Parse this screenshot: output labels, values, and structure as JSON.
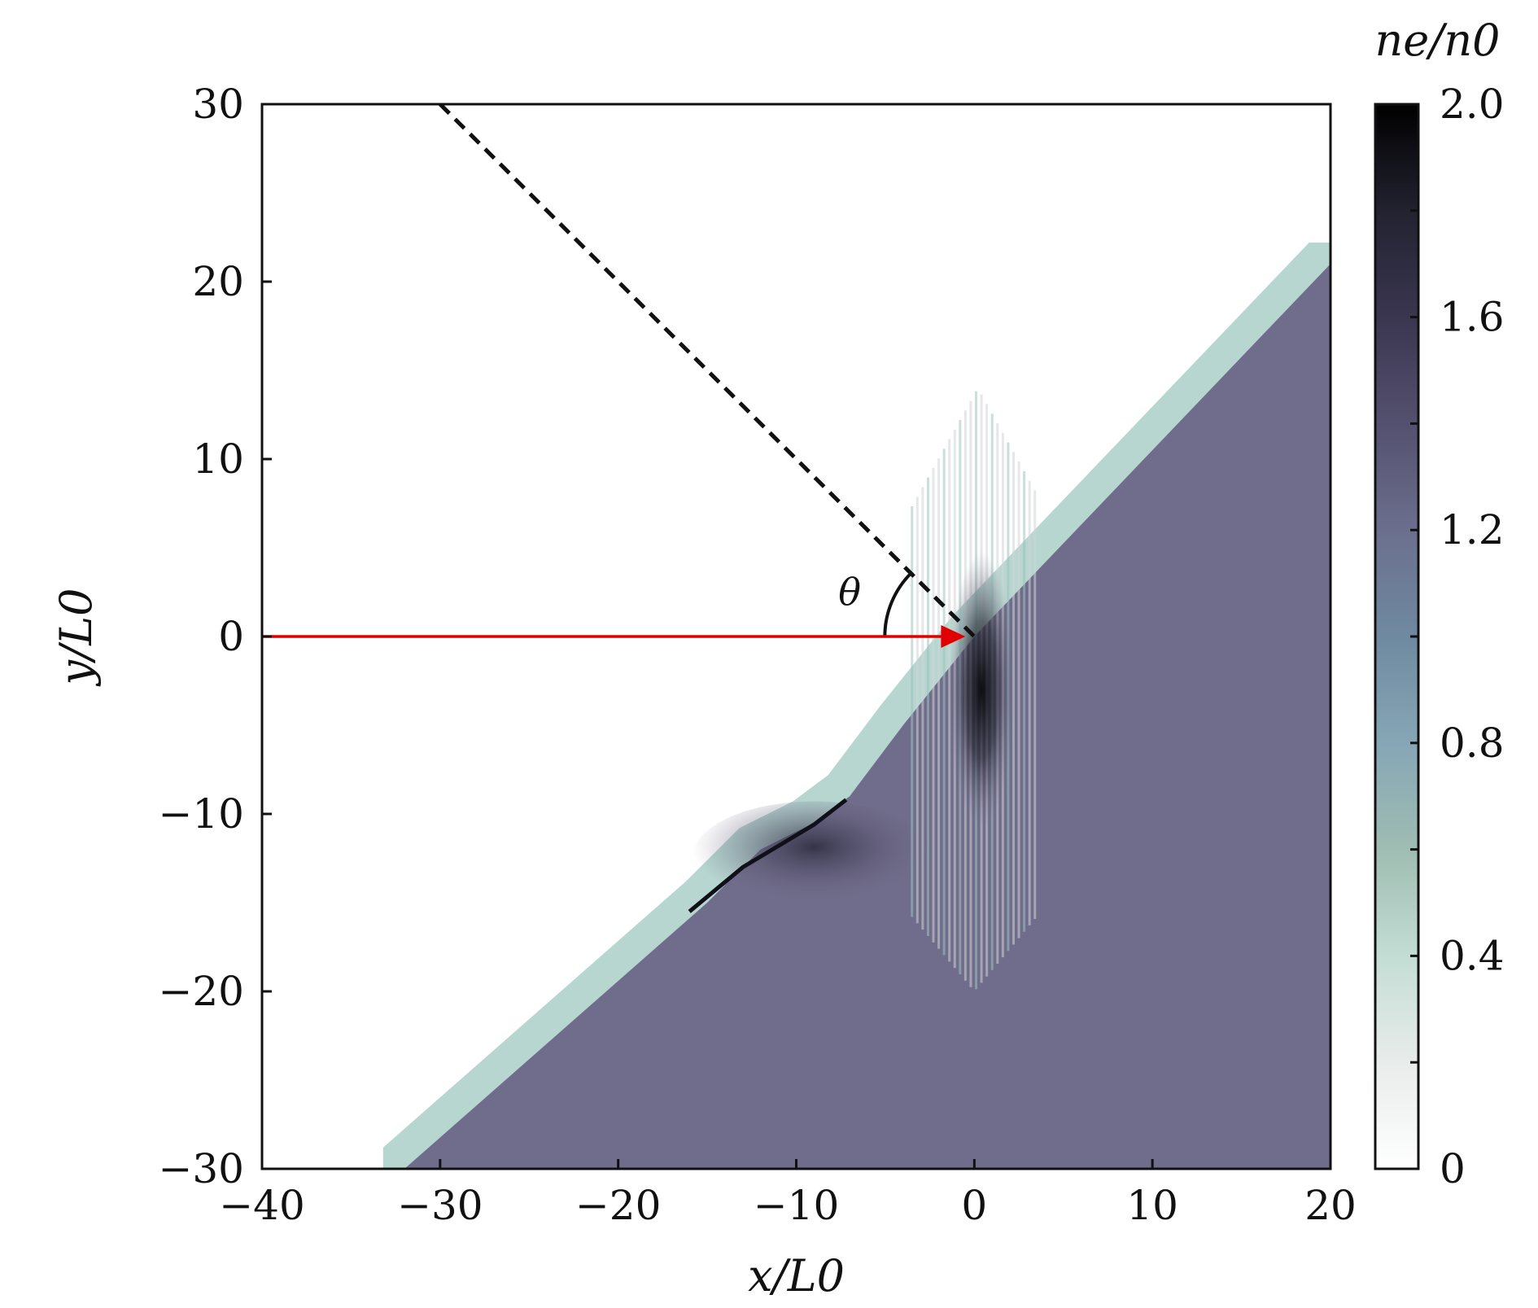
{
  "chart_data": {
    "type": "heatmap",
    "title": "",
    "xlabel": "x/L0",
    "ylabel": "y/L0",
    "xlim": [
      -40,
      20
    ],
    "ylim": [
      -30,
      30
    ],
    "x_ticks": [
      -40,
      -30,
      -20,
      -10,
      0,
      10,
      20
    ],
    "y_ticks": [
      -30,
      -20,
      -10,
      0,
      10,
      20,
      30
    ],
    "x_tick_labels": [
      "−40",
      "−30",
      "−20",
      "−10",
      "0",
      "10",
      "20"
    ],
    "y_tick_labels": [
      "−30",
      "−20",
      "−10",
      "0",
      "10",
      "20",
      "30"
    ],
    "colorbar": {
      "label": "ne/n0",
      "range": [
        0,
        2.0
      ],
      "ticks": [
        0,
        0.4,
        0.8,
        1.2,
        1.6,
        2.0
      ],
      "tick_labels": [
        "0",
        "0.4",
        "0.8",
        "1.2",
        "1.6",
        "2.0"
      ],
      "colors": [
        "#ffffff",
        "#e8ecea",
        "#c3ddd4",
        "#9fbdb2",
        "#86a6b6",
        "#6f8aa0",
        "#6b6f8d",
        "#54506f",
        "#3a3650",
        "#222230",
        "#000000"
      ]
    },
    "plasma_density": 1.1,
    "plasma_color": "#706c8b",
    "target_surface": {
      "slope": 0.85,
      "points": [
        [
          -32,
          -30
        ],
        [
          -15,
          -15
        ],
        [
          -12,
          -12
        ],
        [
          -9,
          -10.5
        ],
        [
          -7,
          -9
        ],
        [
          -4,
          -5
        ],
        [
          0,
          0
        ],
        [
          20,
          21
        ]
      ],
      "compressed_peak_density": 2.0
    },
    "laser": {
      "color": "#e00000",
      "start": [
        -40,
        0
      ],
      "end": [
        -0.5,
        0
      ]
    },
    "surface_normal": {
      "style": "dashed",
      "start": [
        -30,
        30
      ],
      "end": [
        0,
        0
      ]
    },
    "angle_label": "θ",
    "angle_label_pos": [
      -7,
      2.5
    ]
  }
}
